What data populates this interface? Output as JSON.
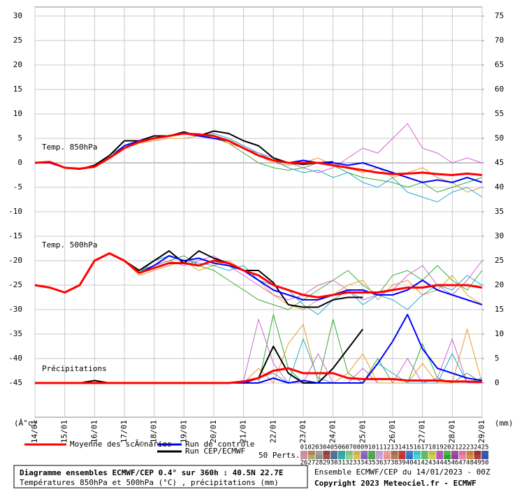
{
  "chart_data": {
    "type": "line",
    "title": "Diagramme ensembles ECMWF/CEP 0.4° sur 360h : 40.5N 22.7E",
    "subtitle": "Températures 850hPa et 500hPa (°C) , précipitations (mm)",
    "run_info": "Ensemble ECMWF/CEP du 14/01/2023 - 00Z",
    "copyright": "Copyright 2023 Meteociel.fr - ECMWF",
    "y_label": "(Â°c)",
    "y2_label": "(mm)",
    "annotations": [
      "Temp. 850hPa",
      "Temp. 500hPa",
      "Précipitations"
    ],
    "grid": true,
    "ylim": [
      -52,
      31
    ],
    "yticks": [
      30,
      25,
      20,
      15,
      10,
      5,
      0,
      -5,
      -10,
      -15,
      -20,
      -25,
      -30,
      -35,
      -40,
      -45
    ],
    "y2lim": [
      -7,
      76
    ],
    "y2ticks": [
      75,
      70,
      65,
      60,
      55,
      50,
      45,
      40,
      35,
      30,
      25,
      20,
      15,
      10,
      5,
      0
    ],
    "xlim": [
      0,
      15
    ],
    "xticks": [
      {
        "value": 0,
        "label": "14/01"
      },
      {
        "value": 1,
        "label": "15/01"
      },
      {
        "value": 2,
        "label": "16/01"
      },
      {
        "value": 3,
        "label": "17/01"
      },
      {
        "value": 4,
        "label": "18/01"
      },
      {
        "value": 5,
        "label": "19/01"
      },
      {
        "value": 6,
        "label": "20/01"
      },
      {
        "value": 7,
        "label": "21/01"
      },
      {
        "value": 8,
        "label": "22/01"
      },
      {
        "value": 9,
        "label": "23/01"
      },
      {
        "value": 10,
        "label": "24/01"
      },
      {
        "value": 11,
        "label": "25/01"
      },
      {
        "value": 12,
        "label": "26/01"
      },
      {
        "value": 13,
        "label": "27/01"
      },
      {
        "value": 14,
        "label": "28/01"
      },
      {
        "value": 15,
        "label": "29/01"
      }
    ],
    "x": [
      0,
      0.5,
      1,
      1.5,
      2,
      2.5,
      3,
      3.5,
      4,
      4.5,
      5,
      5.5,
      6,
      6.5,
      7,
      7.5,
      8,
      8.5,
      9,
      9.5,
      10,
      10.5,
      11,
      11.5,
      12,
      12.5,
      13,
      13.5,
      14,
      14.5,
      15
    ],
    "perturbations": [
      {
        "color": "#33aa33",
        "t850": [
          0,
          0.2,
          -1,
          -1.3,
          -0.5,
          1.5,
          3.5,
          4.5,
          5,
          5.5,
          6,
          5.5,
          5.5,
          4,
          2,
          0,
          -1,
          -1.5,
          -1,
          0,
          -0.5,
          -2,
          -3,
          -3.5,
          -4,
          -5,
          -4,
          -6,
          -5,
          -4,
          -3
        ],
        "t500": [
          -25,
          -25.5,
          -26.5,
          -25,
          -20,
          -18.5,
          -20,
          -22,
          -21,
          -20,
          -19,
          -21,
          -22,
          -24,
          -26,
          -28,
          -29,
          -30,
          -28,
          -26,
          -24,
          -22,
          -25,
          -27,
          -23,
          -22,
          -24,
          -21,
          -24,
          -26,
          -22
        ],
        "precip": [
          0,
          0,
          0,
          0,
          0,
          0,
          0,
          0,
          0,
          0,
          0,
          0,
          0,
          0,
          0,
          0,
          14,
          3,
          0,
          0,
          13,
          2,
          0,
          5,
          0,
          0,
          8,
          1,
          0,
          2,
          0
        ]
      },
      {
        "color": "#cc66cc",
        "t850": [
          0,
          0.2,
          -1,
          -1.2,
          -0.8,
          1,
          3,
          4,
          5,
          5.5,
          6,
          6,
          5,
          4.5,
          3,
          2,
          1,
          0,
          -1,
          -2,
          -1,
          1,
          3,
          2,
          5,
          8,
          3,
          2,
          0,
          1,
          0
        ],
        "t500": [
          -25,
          -25.5,
          -26.5,
          -25,
          -20,
          -18.5,
          -20,
          -22.5,
          -21,
          -20,
          -21,
          -20,
          -19,
          -21,
          -23,
          -25,
          -27,
          -28,
          -27,
          -25,
          -24,
          -26,
          -28,
          -27,
          -26,
          -23,
          -21,
          -25,
          -27,
          -24,
          -20
        ],
        "precip": [
          0,
          0,
          0,
          0,
          0,
          0,
          0,
          0,
          0,
          0,
          0,
          0,
          0,
          0,
          0.5,
          13,
          4,
          0,
          0,
          6,
          0,
          0,
          3,
          0,
          0,
          5,
          0,
          1,
          9,
          0,
          0
        ]
      },
      {
        "color": "#e89a2a",
        "t850": [
          0,
          0.2,
          -1,
          -1.2,
          -0.8,
          1,
          3,
          4,
          4.5,
          5,
          5,
          5.5,
          5,
          4,
          3,
          1.5,
          0,
          -0.5,
          0,
          1,
          -0.5,
          -1,
          -2,
          -1,
          -3,
          -2,
          -1,
          -3,
          -4,
          -6,
          -5
        ],
        "t500": [
          -25,
          -25.5,
          -26.5,
          -25,
          -20,
          -18.5,
          -20,
          -23,
          -22,
          -21,
          -20,
          -22,
          -21,
          -20,
          -22,
          -24,
          -27,
          -29,
          -30,
          -28,
          -27,
          -25,
          -24,
          -28,
          -25,
          -24,
          -27,
          -26,
          -23,
          -27,
          -29
        ],
        "precip": [
          0,
          0,
          0,
          0,
          0,
          0,
          0,
          0,
          0,
          0,
          0,
          0,
          0,
          0,
          0,
          3,
          0,
          8,
          12,
          0,
          0,
          2,
          6,
          0,
          0,
          0,
          4,
          0,
          0,
          11,
          0
        ]
      },
      {
        "color": "#22aacc",
        "t850": [
          0,
          0.2,
          -1,
          -1.2,
          -0.8,
          1,
          3,
          4.5,
          5,
          5.5,
          6,
          5.5,
          6,
          5,
          3.5,
          2,
          0.5,
          -1,
          -2,
          -1.5,
          -3,
          -2,
          -4,
          -5,
          -3,
          -6,
          -7,
          -8,
          -6,
          -5,
          -7
        ],
        "t500": [
          -25,
          -25.5,
          -26.5,
          -25,
          -20,
          -18.5,
          -20,
          -22.5,
          -20,
          -19,
          -20,
          -20.5,
          -21,
          -22,
          -21,
          -24,
          -25,
          -26,
          -29,
          -31,
          -28,
          -26,
          -29,
          -27,
          -28,
          -30,
          -27,
          -25,
          -26,
          -23,
          -25
        ],
        "precip": [
          0,
          0,
          0,
          0,
          0,
          0,
          0,
          0,
          0,
          0,
          0,
          0,
          0,
          0,
          0,
          1,
          2,
          0,
          9,
          1,
          0,
          0,
          0,
          4,
          2,
          0,
          0,
          0,
          6,
          0,
          1
        ]
      }
    ],
    "series": [
      {
        "name": "Run CEP/ECMWF",
        "color": "#000000",
        "t850": [
          0,
          0.2,
          -1,
          -1.3,
          -0.5,
          1.5,
          4.5,
          4.5,
          5.5,
          5.5,
          6.3,
          5.5,
          6.5,
          6,
          4.5,
          3.5,
          1,
          0,
          -0.3,
          0,
          0.2,
          null,
          null,
          null,
          null,
          null,
          null,
          null,
          null,
          null,
          null
        ],
        "t500": [
          -25,
          -25.5,
          -26.5,
          -25,
          -20,
          -18.5,
          -20,
          -22,
          -20,
          -18,
          -20.5,
          -18,
          -19.5,
          -20.5,
          -22,
          -22,
          -24.5,
          -29,
          -29.5,
          -29.5,
          -28,
          -27.5,
          -27.5,
          null,
          null,
          null,
          null,
          null,
          null,
          null,
          null
        ],
        "precip": [
          0,
          0,
          0,
          0,
          0.5,
          0,
          0,
          0,
          0,
          0,
          0,
          0,
          0,
          0,
          0,
          1,
          7.5,
          2,
          0,
          0,
          3,
          7,
          11,
          null,
          null,
          null,
          null,
          null,
          null,
          null,
          null
        ]
      },
      {
        "name": "Run de contrôle",
        "color": "#0000ff",
        "t850": [
          0,
          0,
          -1,
          -1.2,
          -0.8,
          1,
          3.5,
          4.5,
          5,
          5.5,
          6,
          5.5,
          5,
          4.5,
          3,
          1.5,
          0.5,
          0,
          0.5,
          0,
          0,
          -0.5,
          0,
          -1,
          -2,
          -3,
          -4,
          -3.5,
          -4,
          -3,
          -4
        ],
        "t500": [
          -25,
          -25.5,
          -26.5,
          -25,
          -20,
          -18.5,
          -20,
          -22.5,
          -21,
          -19,
          -20,
          -19.5,
          -20.5,
          -21,
          -22,
          -24,
          -26,
          -27,
          -28,
          -28,
          -27,
          -26,
          -26,
          -27,
          -27,
          -26,
          -24,
          -26,
          -27,
          -28,
          -29
        ],
        "precip": [
          0,
          0,
          0,
          0,
          0,
          0,
          0,
          0,
          0,
          0,
          0,
          0,
          0,
          0,
          0,
          0,
          1,
          0,
          0.5,
          0,
          0,
          0,
          0,
          4,
          8.5,
          14,
          7,
          3,
          2,
          1,
          0.5
        ]
      },
      {
        "name": "Moyenne des scÃ©narios",
        "color": "#ff0000",
        "t850": [
          0,
          0.2,
          -1,
          -1.2,
          -0.8,
          1,
          3,
          4.3,
          5,
          5.5,
          6,
          5.8,
          5.5,
          4.5,
          3,
          1.5,
          0.5,
          0,
          0,
          0,
          -0.5,
          -1,
          -1.5,
          -2,
          -2.3,
          -2.2,
          -2,
          -2.3,
          -2.5,
          -2.2,
          -2.5
        ],
        "t500": [
          -25,
          -25.5,
          -26.5,
          -25,
          -20,
          -18.5,
          -20,
          -22.5,
          -21.5,
          -20.5,
          -20.5,
          -21,
          -20,
          -20.5,
          -22,
          -23,
          -25,
          -26,
          -27,
          -27.5,
          -27,
          -26.5,
          -26.5,
          -26.5,
          -26,
          -25.5,
          -25.5,
          -25,
          -25,
          -25,
          -25.5
        ],
        "precip": [
          0,
          0,
          0,
          0,
          0,
          0,
          0,
          0,
          0,
          0,
          0,
          0,
          0,
          0,
          0.3,
          1,
          2.5,
          3,
          2,
          2,
          2,
          1,
          0.8,
          0.8,
          0.8,
          0.5,
          0.5,
          0.5,
          0.3,
          0.3,
          0.2
        ]
      }
    ],
    "members_label": "50 Perts.",
    "members": [
      {
        "label": "01",
        "color": "#c89090"
      },
      {
        "label": "02",
        "color": "#b08060"
      },
      {
        "label": "03",
        "color": "#a0a0a0"
      },
      {
        "label": "04",
        "color": "#904040"
      },
      {
        "label": "05",
        "color": "#607080"
      },
      {
        "label": "06",
        "color": "#40a0a0"
      },
      {
        "label": "07",
        "color": "#80c080"
      },
      {
        "label": "08",
        "color": "#d0b060"
      },
      {
        "label": "09",
        "color": "#9070b0"
      },
      {
        "label": "10",
        "color": "#60a060"
      },
      {
        "label": "11",
        "color": "#c0a0d0"
      },
      {
        "label": "12",
        "color": "#e0a0a0"
      },
      {
        "label": "13",
        "color": "#a07050"
      },
      {
        "label": "14",
        "color": "#c04040"
      },
      {
        "label": "15",
        "color": "#4080c0"
      },
      {
        "label": "16",
        "color": "#40c0c0"
      },
      {
        "label": "17",
        "color": "#70b070"
      },
      {
        "label": "18",
        "color": "#c0c040"
      },
      {
        "label": "19",
        "color": "#b060b0"
      },
      {
        "label": "20",
        "color": "#50b050"
      },
      {
        "label": "21",
        "color": "#a050a0"
      },
      {
        "label": "22",
        "color": "#e070a0"
      },
      {
        "label": "23",
        "color": "#c08040"
      },
      {
        "label": "24",
        "color": "#a03030"
      },
      {
        "label": "25",
        "color": "#3060a0"
      },
      {
        "label": "26",
        "color": "#d090b0"
      },
      {
        "label": "27",
        "color": "#b0b060"
      },
      {
        "label": "28",
        "color": "#909090"
      },
      {
        "label": "29",
        "color": "#a05050"
      },
      {
        "label": "30",
        "color": "#5070a0"
      },
      {
        "label": "31",
        "color": "#30b0b0"
      },
      {
        "label": "32",
        "color": "#90d090"
      },
      {
        "label": "33",
        "color": "#e0c050"
      },
      {
        "label": "34",
        "color": "#8060c0"
      },
      {
        "label": "35",
        "color": "#40b040"
      },
      {
        "label": "36",
        "color": "#d0a0e0"
      },
      {
        "label": "37",
        "color": "#f09090"
      },
      {
        "label": "38",
        "color": "#b08050"
      },
      {
        "label": "39",
        "color": "#d03030"
      },
      {
        "label": "40",
        "color": "#3070d0"
      },
      {
        "label": "41",
        "color": "#50d0d0"
      },
      {
        "label": "42",
        "color": "#60c060"
      },
      {
        "label": "43",
        "color": "#d0d050"
      },
      {
        "label": "44",
        "color": "#c050c0"
      },
      {
        "label": "45",
        "color": "#30a030"
      },
      {
        "label": "46",
        "color": "#9040a0"
      },
      {
        "label": "47",
        "color": "#f080b0"
      },
      {
        "label": "48",
        "color": "#d09040"
      },
      {
        "label": "49",
        "color": "#b04040"
      },
      {
        "label": "50",
        "color": "#4050b0"
      }
    ]
  }
}
